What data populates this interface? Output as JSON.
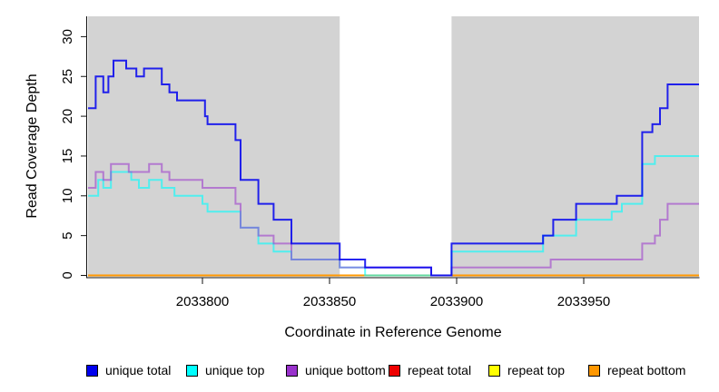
{
  "chart_data": {
    "type": "line",
    "subtype": "step-coverage",
    "title": "",
    "xlabel": "Coordinate in Reference Genome",
    "ylabel": "Read Coverage Depth",
    "x_domain": [
      2033755,
      2033995
    ],
    "y_domain": [
      0,
      31.5
    ],
    "x_ticks": [
      2033800,
      2033850,
      2033900,
      2033950
    ],
    "y_ticks": [
      0,
      5,
      10,
      15,
      20,
      25,
      30
    ],
    "grid": false,
    "plot_bg_color": "#d3d3d3",
    "gap_region": {
      "from": 2033854,
      "to": 2033898,
      "color": "#ffffff"
    },
    "legend_position": "bottom",
    "series": [
      {
        "name": "repeat total",
        "color": "#ee0000",
        "line_opacity": 1,
        "values": [
          [
            2033755,
            0
          ]
        ]
      },
      {
        "name": "repeat top",
        "color": "#ffff00",
        "line_opacity": 1,
        "values": [
          [
            2033755,
            0
          ]
        ]
      },
      {
        "name": "repeat bottom",
        "color": "#ff9700",
        "line_opacity": 1,
        "values": [
          [
            2033755,
            0
          ]
        ]
      },
      {
        "name": "unique top",
        "color": "#00ffff",
        "line_opacity": 0.62,
        "values": [
          [
            2033755,
            10
          ],
          [
            2033759,
            12
          ],
          [
            2033761,
            11
          ],
          [
            2033764,
            13
          ],
          [
            2033772,
            12
          ],
          [
            2033775,
            11
          ],
          [
            2033779,
            12
          ],
          [
            2033784,
            11
          ],
          [
            2033789,
            10
          ],
          [
            2033800,
            9
          ],
          [
            2033802,
            8
          ],
          [
            2033815,
            6
          ],
          [
            2033822,
            4
          ],
          [
            2033828,
            3
          ],
          [
            2033835,
            2
          ],
          [
            2033854,
            1
          ],
          [
            2033864,
            0
          ],
          [
            2033898,
            3
          ],
          [
            2033934,
            5
          ],
          [
            2033947,
            7
          ],
          [
            2033961,
            8
          ],
          [
            2033965,
            9
          ],
          [
            2033973,
            14
          ],
          [
            2033978,
            15
          ]
        ]
      },
      {
        "name": "unique bottom",
        "color": "#9932cc",
        "line_opacity": 0.55,
        "values": [
          [
            2033755,
            11
          ],
          [
            2033758,
            13
          ],
          [
            2033761,
            12
          ],
          [
            2033764,
            14
          ],
          [
            2033771,
            13
          ],
          [
            2033779,
            14
          ],
          [
            2033784,
            13
          ],
          [
            2033787,
            12
          ],
          [
            2033800,
            11
          ],
          [
            2033813,
            9
          ],
          [
            2033815,
            6
          ],
          [
            2033822,
            5
          ],
          [
            2033828,
            4
          ],
          [
            2033835,
            2
          ],
          [
            2033854,
            1
          ],
          [
            2033890,
            0
          ],
          [
            2033898,
            1
          ],
          [
            2033937,
            2
          ],
          [
            2033973,
            4
          ],
          [
            2033978,
            5
          ],
          [
            2033980,
            7
          ],
          [
            2033983,
            9
          ]
        ]
      },
      {
        "name": "unique total",
        "color": "#0000ee",
        "line_opacity": 0.85,
        "values": [
          [
            2033755,
            21
          ],
          [
            2033758,
            25
          ],
          [
            2033761,
            23
          ],
          [
            2033763,
            25
          ],
          [
            2033765,
            27
          ],
          [
            2033770,
            26
          ],
          [
            2033774,
            25
          ],
          [
            2033777,
            26
          ],
          [
            2033784,
            24
          ],
          [
            2033787,
            23
          ],
          [
            2033790,
            22
          ],
          [
            2033801,
            20
          ],
          [
            2033802,
            19
          ],
          [
            2033813,
            17
          ],
          [
            2033815,
            12
          ],
          [
            2033822,
            9
          ],
          [
            2033828,
            7
          ],
          [
            2033835,
            4
          ],
          [
            2033854,
            2
          ],
          [
            2033864,
            1
          ],
          [
            2033890,
            0
          ],
          [
            2033898,
            4
          ],
          [
            2033934,
            5
          ],
          [
            2033938,
            7
          ],
          [
            2033947,
            9
          ],
          [
            2033963,
            10
          ],
          [
            2033973,
            18
          ],
          [
            2033977,
            19
          ],
          [
            2033980,
            21
          ],
          [
            2033983,
            24
          ]
        ]
      }
    ]
  },
  "legend": {
    "items": [
      {
        "label": "unique total",
        "color": "#0000ee"
      },
      {
        "label": "unique top",
        "color": "#00ffff"
      },
      {
        "label": "unique bottom",
        "color": "#9932cc"
      },
      {
        "label": "repeat total",
        "color": "#ee0000"
      },
      {
        "label": "repeat top",
        "color": "#ffff00"
      },
      {
        "label": "repeat bottom",
        "color": "#ff9700"
      }
    ]
  }
}
